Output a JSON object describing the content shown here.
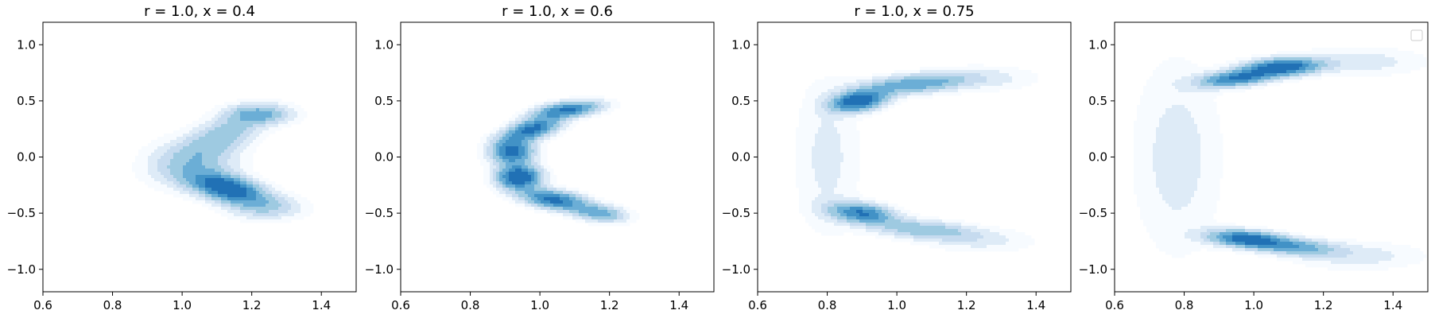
{
  "figure": {
    "colormap": [
      "#f7fbff",
      "#deebf7",
      "#c6dbef",
      "#9ecae1",
      "#6baed6",
      "#4292c6",
      "#2171b5",
      "#08519c"
    ],
    "axis_color": "#000000",
    "background": "#ffffff"
  },
  "chart_data": [
    {
      "type": "contour",
      "title": "r = 1.0, x = 0.4",
      "xlim": [
        0.6,
        1.5
      ],
      "ylim": [
        -1.2,
        1.2
      ],
      "xticks": [
        "0.6",
        "0.8",
        "1.0",
        "1.2",
        "1.4"
      ],
      "yticks": [
        "−1.0",
        "−0.5",
        "0.0",
        "0.5",
        "1.0"
      ],
      "density_components": [
        {
          "x": 1.13,
          "y": -0.28,
          "sx": 0.07,
          "sy": 0.09,
          "rho": -0.5,
          "w": 1.0
        },
        {
          "x": 1.03,
          "y": -0.05,
          "sx": 0.08,
          "sy": 0.13,
          "rho": 0.1,
          "w": 0.35
        },
        {
          "x": 1.12,
          "y": 0.2,
          "sx": 0.07,
          "sy": 0.12,
          "rho": 0.55,
          "w": 0.35
        },
        {
          "x": 1.22,
          "y": 0.38,
          "sx": 0.06,
          "sy": 0.06,
          "rho": 0.0,
          "w": 0.45
        },
        {
          "x": 1.24,
          "y": -0.45,
          "sx": 0.07,
          "sy": 0.07,
          "rho": 0.0,
          "w": 0.25
        }
      ]
    },
    {
      "type": "contour",
      "title": "r = 1.0, x = 0.6",
      "xlim": [
        0.6,
        1.5
      ],
      "ylim": [
        -1.2,
        1.2
      ],
      "xticks": [
        "0.6",
        "0.8",
        "1.0",
        "1.2",
        "1.4"
      ],
      "yticks": [
        "−1.0",
        "−0.5",
        "0.0",
        "0.5",
        "1.0"
      ],
      "density_components": [
        {
          "x": 0.94,
          "y": -0.18,
          "sx": 0.04,
          "sy": 0.07,
          "rho": 0.0,
          "w": 1.0
        },
        {
          "x": 0.92,
          "y": 0.05,
          "sx": 0.04,
          "sy": 0.08,
          "rho": 0.0,
          "w": 0.8
        },
        {
          "x": 0.98,
          "y": 0.25,
          "sx": 0.05,
          "sy": 0.07,
          "rho": 0.5,
          "w": 0.8
        },
        {
          "x": 1.08,
          "y": 0.42,
          "sx": 0.06,
          "sy": 0.05,
          "rho": 0.4,
          "w": 0.75
        },
        {
          "x": 1.04,
          "y": -0.38,
          "sx": 0.06,
          "sy": 0.06,
          "rho": -0.4,
          "w": 0.8
        },
        {
          "x": 1.17,
          "y": -0.5,
          "sx": 0.05,
          "sy": 0.05,
          "rho": -0.3,
          "w": 0.5
        }
      ]
    },
    {
      "type": "contour",
      "title": "r = 1.0, x = 0.75",
      "xlim": [
        0.6,
        1.5
      ],
      "ylim": [
        -1.2,
        1.2
      ],
      "xticks": [
        "0.6",
        "0.8",
        "1.0",
        "1.2",
        "1.4"
      ],
      "yticks": [
        "−1.0",
        "−0.5",
        "0.0",
        "0.5",
        "1.0"
      ],
      "density_components": [
        {
          "x": 0.89,
          "y": 0.5,
          "sx": 0.05,
          "sy": 0.06,
          "rho": 0.3,
          "w": 1.0
        },
        {
          "x": 1.05,
          "y": 0.65,
          "sx": 0.1,
          "sy": 0.06,
          "rho": 0.4,
          "w": 0.55
        },
        {
          "x": 0.9,
          "y": -0.5,
          "sx": 0.06,
          "sy": 0.06,
          "rho": -0.3,
          "w": 0.75
        },
        {
          "x": 1.08,
          "y": -0.65,
          "sx": 0.1,
          "sy": 0.06,
          "rho": -0.4,
          "w": 0.4
        },
        {
          "x": 0.8,
          "y": 0.0,
          "sx": 0.06,
          "sy": 0.45,
          "rho": 0.0,
          "w": 0.12
        },
        {
          "x": 1.25,
          "y": 0.7,
          "sx": 0.1,
          "sy": 0.07,
          "rho": 0.0,
          "w": 0.12
        },
        {
          "x": 1.25,
          "y": -0.75,
          "sx": 0.1,
          "sy": 0.07,
          "rho": 0.0,
          "w": 0.1
        }
      ]
    },
    {
      "type": "contour",
      "title": "",
      "xlim": [
        0.6,
        1.5
      ],
      "ylim": [
        -1.2,
        1.2
      ],
      "xticks": [
        "0.6",
        "0.8",
        "1.0",
        "1.2",
        "1.4"
      ],
      "yticks": [
        "−1.0",
        "−0.5",
        "0.0",
        "0.5",
        "1.0"
      ],
      "legend": "top-right, empty",
      "density_components": [
        {
          "x": 1.08,
          "y": 0.8,
          "sx": 0.07,
          "sy": 0.05,
          "rho": 0.2,
          "w": 1.0
        },
        {
          "x": 0.95,
          "y": 0.7,
          "sx": 0.07,
          "sy": 0.05,
          "rho": 0.4,
          "w": 0.8
        },
        {
          "x": 0.98,
          "y": -0.73,
          "sx": 0.07,
          "sy": 0.05,
          "rho": -0.3,
          "w": 0.95
        },
        {
          "x": 1.12,
          "y": -0.8,
          "sx": 0.08,
          "sy": 0.05,
          "rho": -0.3,
          "w": 0.5
        },
        {
          "x": 0.78,
          "y": 0.0,
          "sx": 0.08,
          "sy": 0.55,
          "rho": 0.0,
          "w": 0.14
        },
        {
          "x": 1.3,
          "y": 0.85,
          "sx": 0.12,
          "sy": 0.08,
          "rho": 0.0,
          "w": 0.15
        },
        {
          "x": 1.3,
          "y": -0.88,
          "sx": 0.12,
          "sy": 0.08,
          "rho": 0.0,
          "w": 0.14
        }
      ]
    }
  ]
}
